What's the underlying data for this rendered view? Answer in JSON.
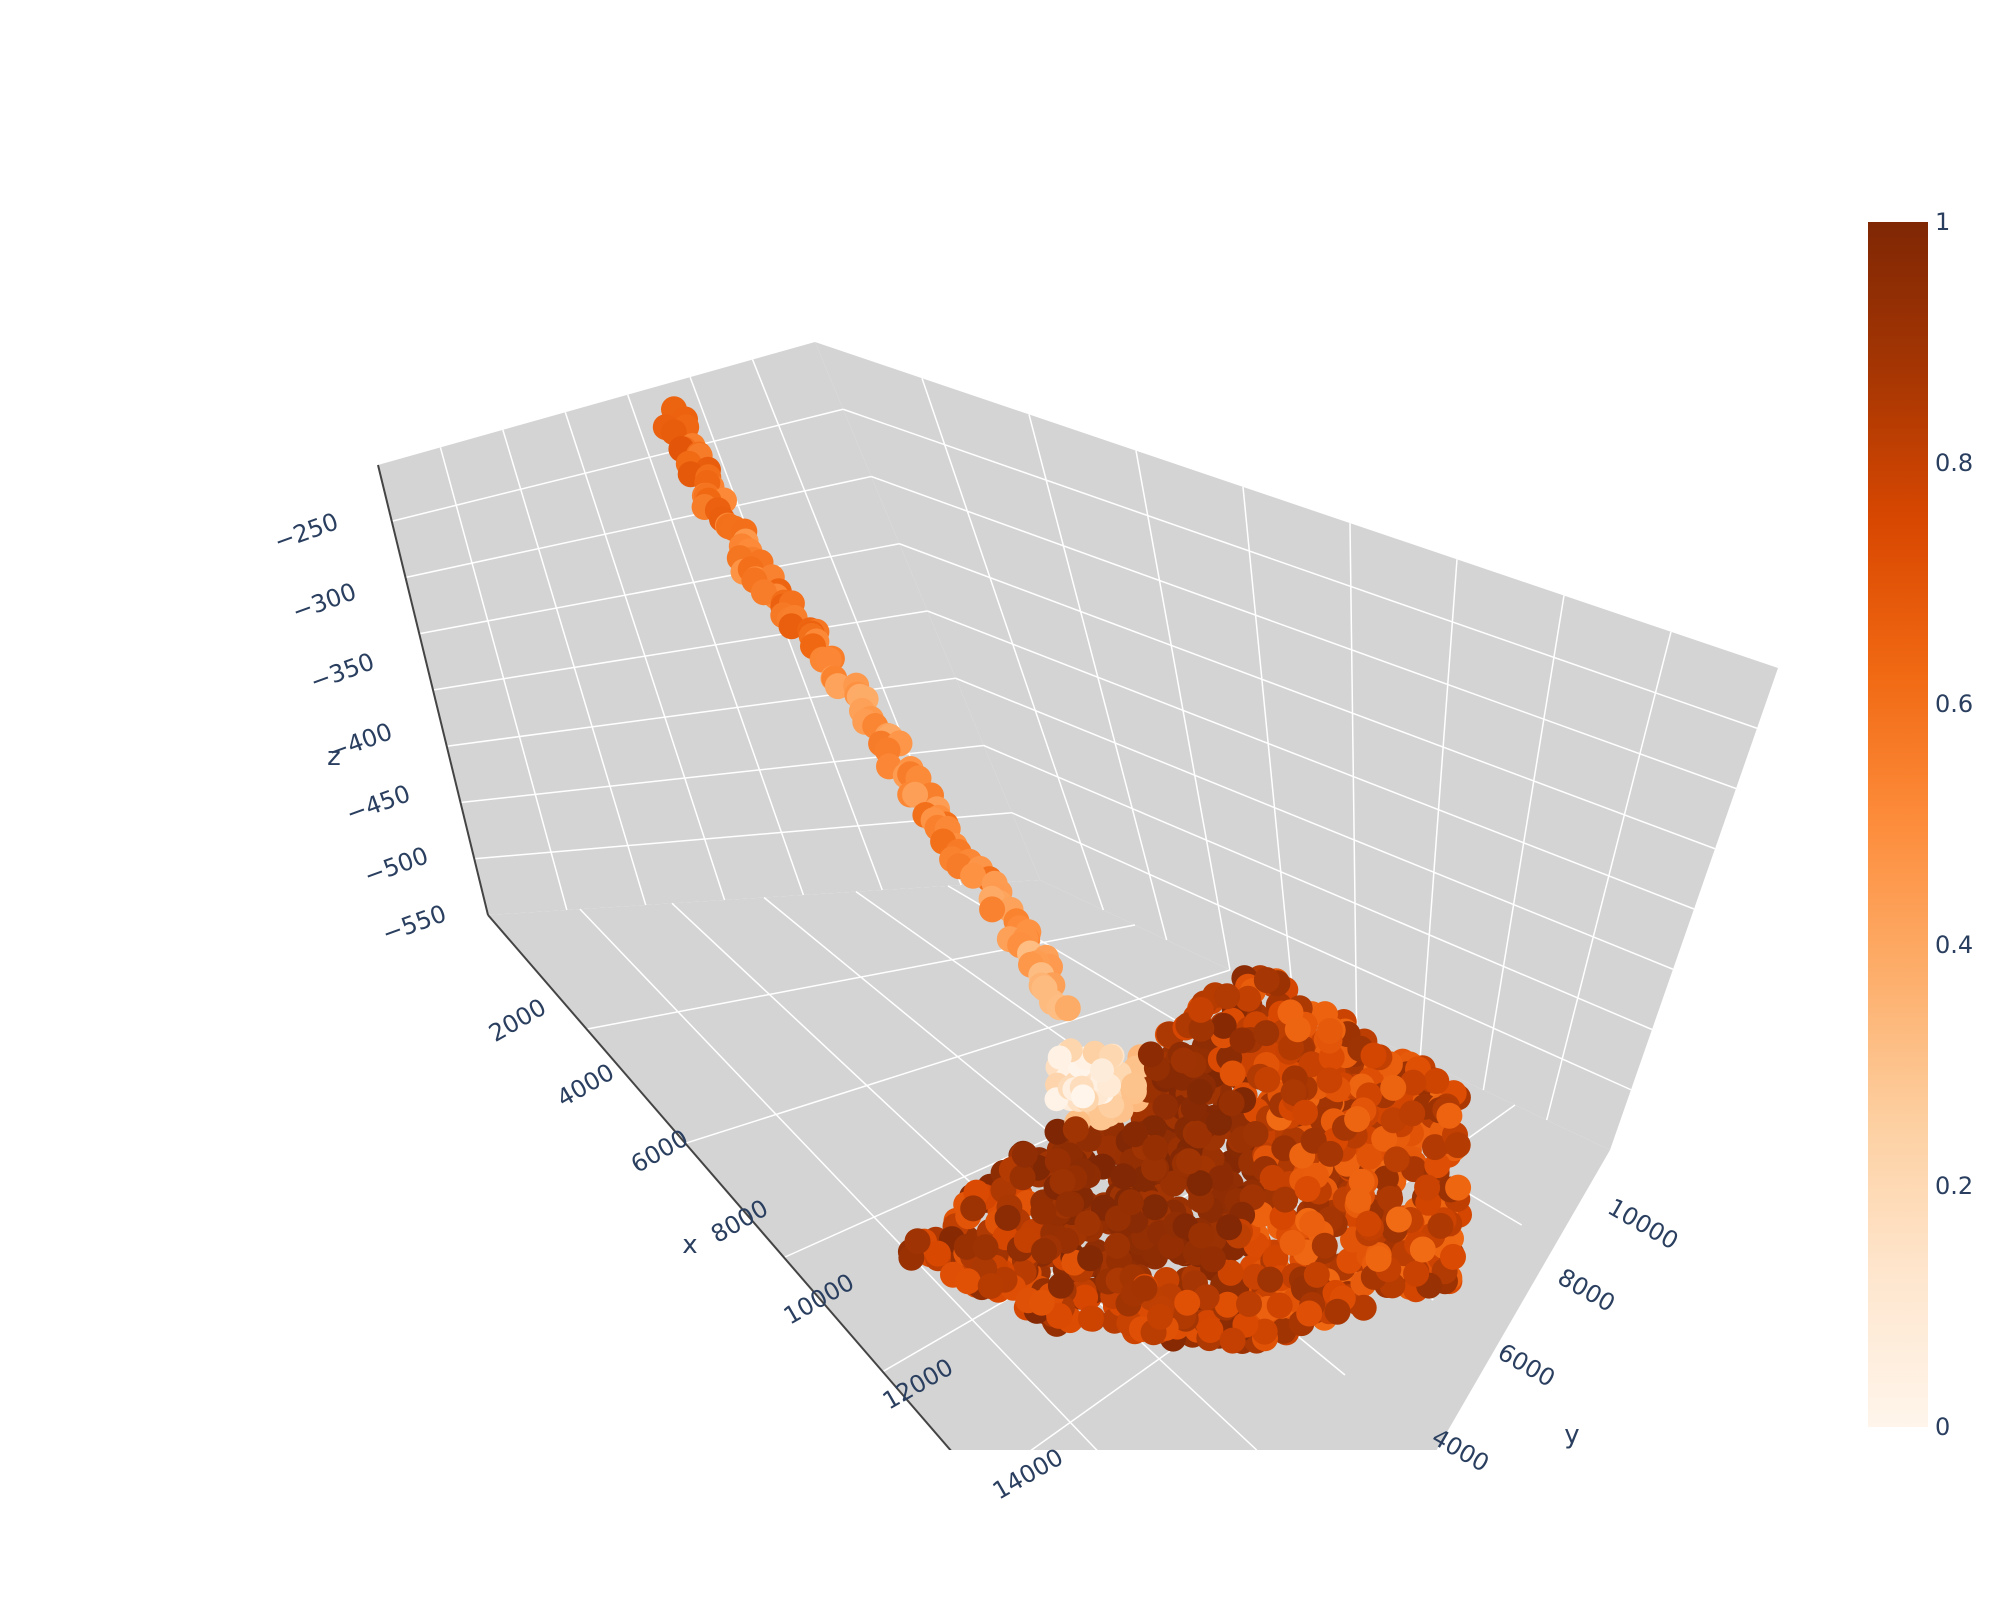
{
  "chart_data": {
    "type": "scatter3d",
    "title": "",
    "axes": {
      "x": {
        "label": "x",
        "ticks": [
          "2000",
          "4000",
          "6000",
          "8000",
          "10000",
          "12000",
          "14000"
        ]
      },
      "y": {
        "label": "y",
        "ticks": [
          "4000",
          "6000",
          "8000",
          "10000"
        ]
      },
      "z": {
        "label": "z",
        "ticks": [
          "−250",
          "−300",
          "−350",
          "−400",
          "−450",
          "−500",
          "−550"
        ]
      }
    },
    "colorscale": {
      "name": "Oranges",
      "range": [
        0,
        1
      ],
      "ticks": [
        "0",
        "0.2",
        "0.4",
        "0.6",
        "0.8",
        "1"
      ],
      "colors": [
        "#fff5eb",
        "#fee6ce",
        "#fdd0a2",
        "#fdae6b",
        "#fd8d3c",
        "#f16913",
        "#d94801",
        "#a63603",
        "#7f2704"
      ]
    },
    "scene": {
      "background": "#d4d4d4",
      "grid_color": "#ffffff"
    },
    "series": [
      {
        "name": "",
        "note_points": "upper tail runs from z≈-230 down to the base; main body is a dense mound near z≈-550 to -600",
        "tail": [
          {
            "x": 600,
            "y": 8000,
            "z": -230,
            "c": 0.62
          },
          {
            "x": 1200,
            "y": 7800,
            "z": -270,
            "c": 0.55
          },
          {
            "x": 1800,
            "y": 7600,
            "z": -310,
            "c": 0.6
          },
          {
            "x": 2400,
            "y": 7400,
            "z": -350,
            "c": 0.48
          },
          {
            "x": 3000,
            "y": 7200,
            "z": -390,
            "c": 0.42
          },
          {
            "x": 3600,
            "y": 7000,
            "z": -430,
            "c": 0.58
          },
          {
            "x": 4200,
            "y": 6900,
            "z": -470,
            "c": 0.45
          },
          {
            "x": 4800,
            "y": 6800,
            "z": -510,
            "c": 0.4
          },
          {
            "x": 5400,
            "y": 6700,
            "z": -545,
            "c": 0.3
          },
          {
            "x": 6000,
            "y": 6600,
            "z": -575,
            "c": 0.1
          }
        ]
      }
    ]
  }
}
